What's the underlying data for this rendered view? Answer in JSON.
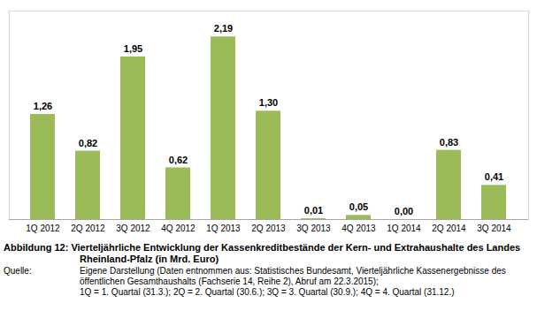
{
  "chart_data": {
    "type": "bar",
    "title": "Abbildung 12: Vierteljährliche Entwicklung der Kassenkreditbestände der Kern- und Extrahaushalte des Landes Rheinland-Pfalz (in Mrd. Euro)",
    "source_label": "Quelle:",
    "source": [
      "Eigene Darstellung (Daten entnommen aus: Statistisches Bundesamt, Vierteljährliche Kassenergebnisse des öffentlichen Gesamthaushalts (Fachserie 14, Reihe 2), Abruf am 22.3.2015);",
      "1Q = 1. Quartal (31.3.);  2Q = 2. Quartal (30.6.); 3Q = 3. Quartal (30.9.); 4Q = 4. Quartal (31.12.)"
    ],
    "categories": [
      "1Q 2012",
      "2Q 2012",
      "3Q 2012",
      "4Q 2012",
      "1Q 2013",
      "2Q 2013",
      "3Q 2013",
      "4Q 2013",
      "1Q 2014",
      "2Q 2014",
      "3Q 2014"
    ],
    "values": [
      1.26,
      0.82,
      1.95,
      0.62,
      2.19,
      1.3,
      0.01,
      0.05,
      0.0,
      0.83,
      0.41
    ],
    "value_labels": [
      "1,26",
      "0,82",
      "1,95",
      "0,62",
      "2,19",
      "1,30",
      "0,01",
      "0,05",
      "0,00",
      "0,83",
      "0,41"
    ],
    "color": "#9bbb59",
    "ylim": [
      0,
      2.5
    ],
    "data_labels": true,
    "tick_labels": "x"
  }
}
